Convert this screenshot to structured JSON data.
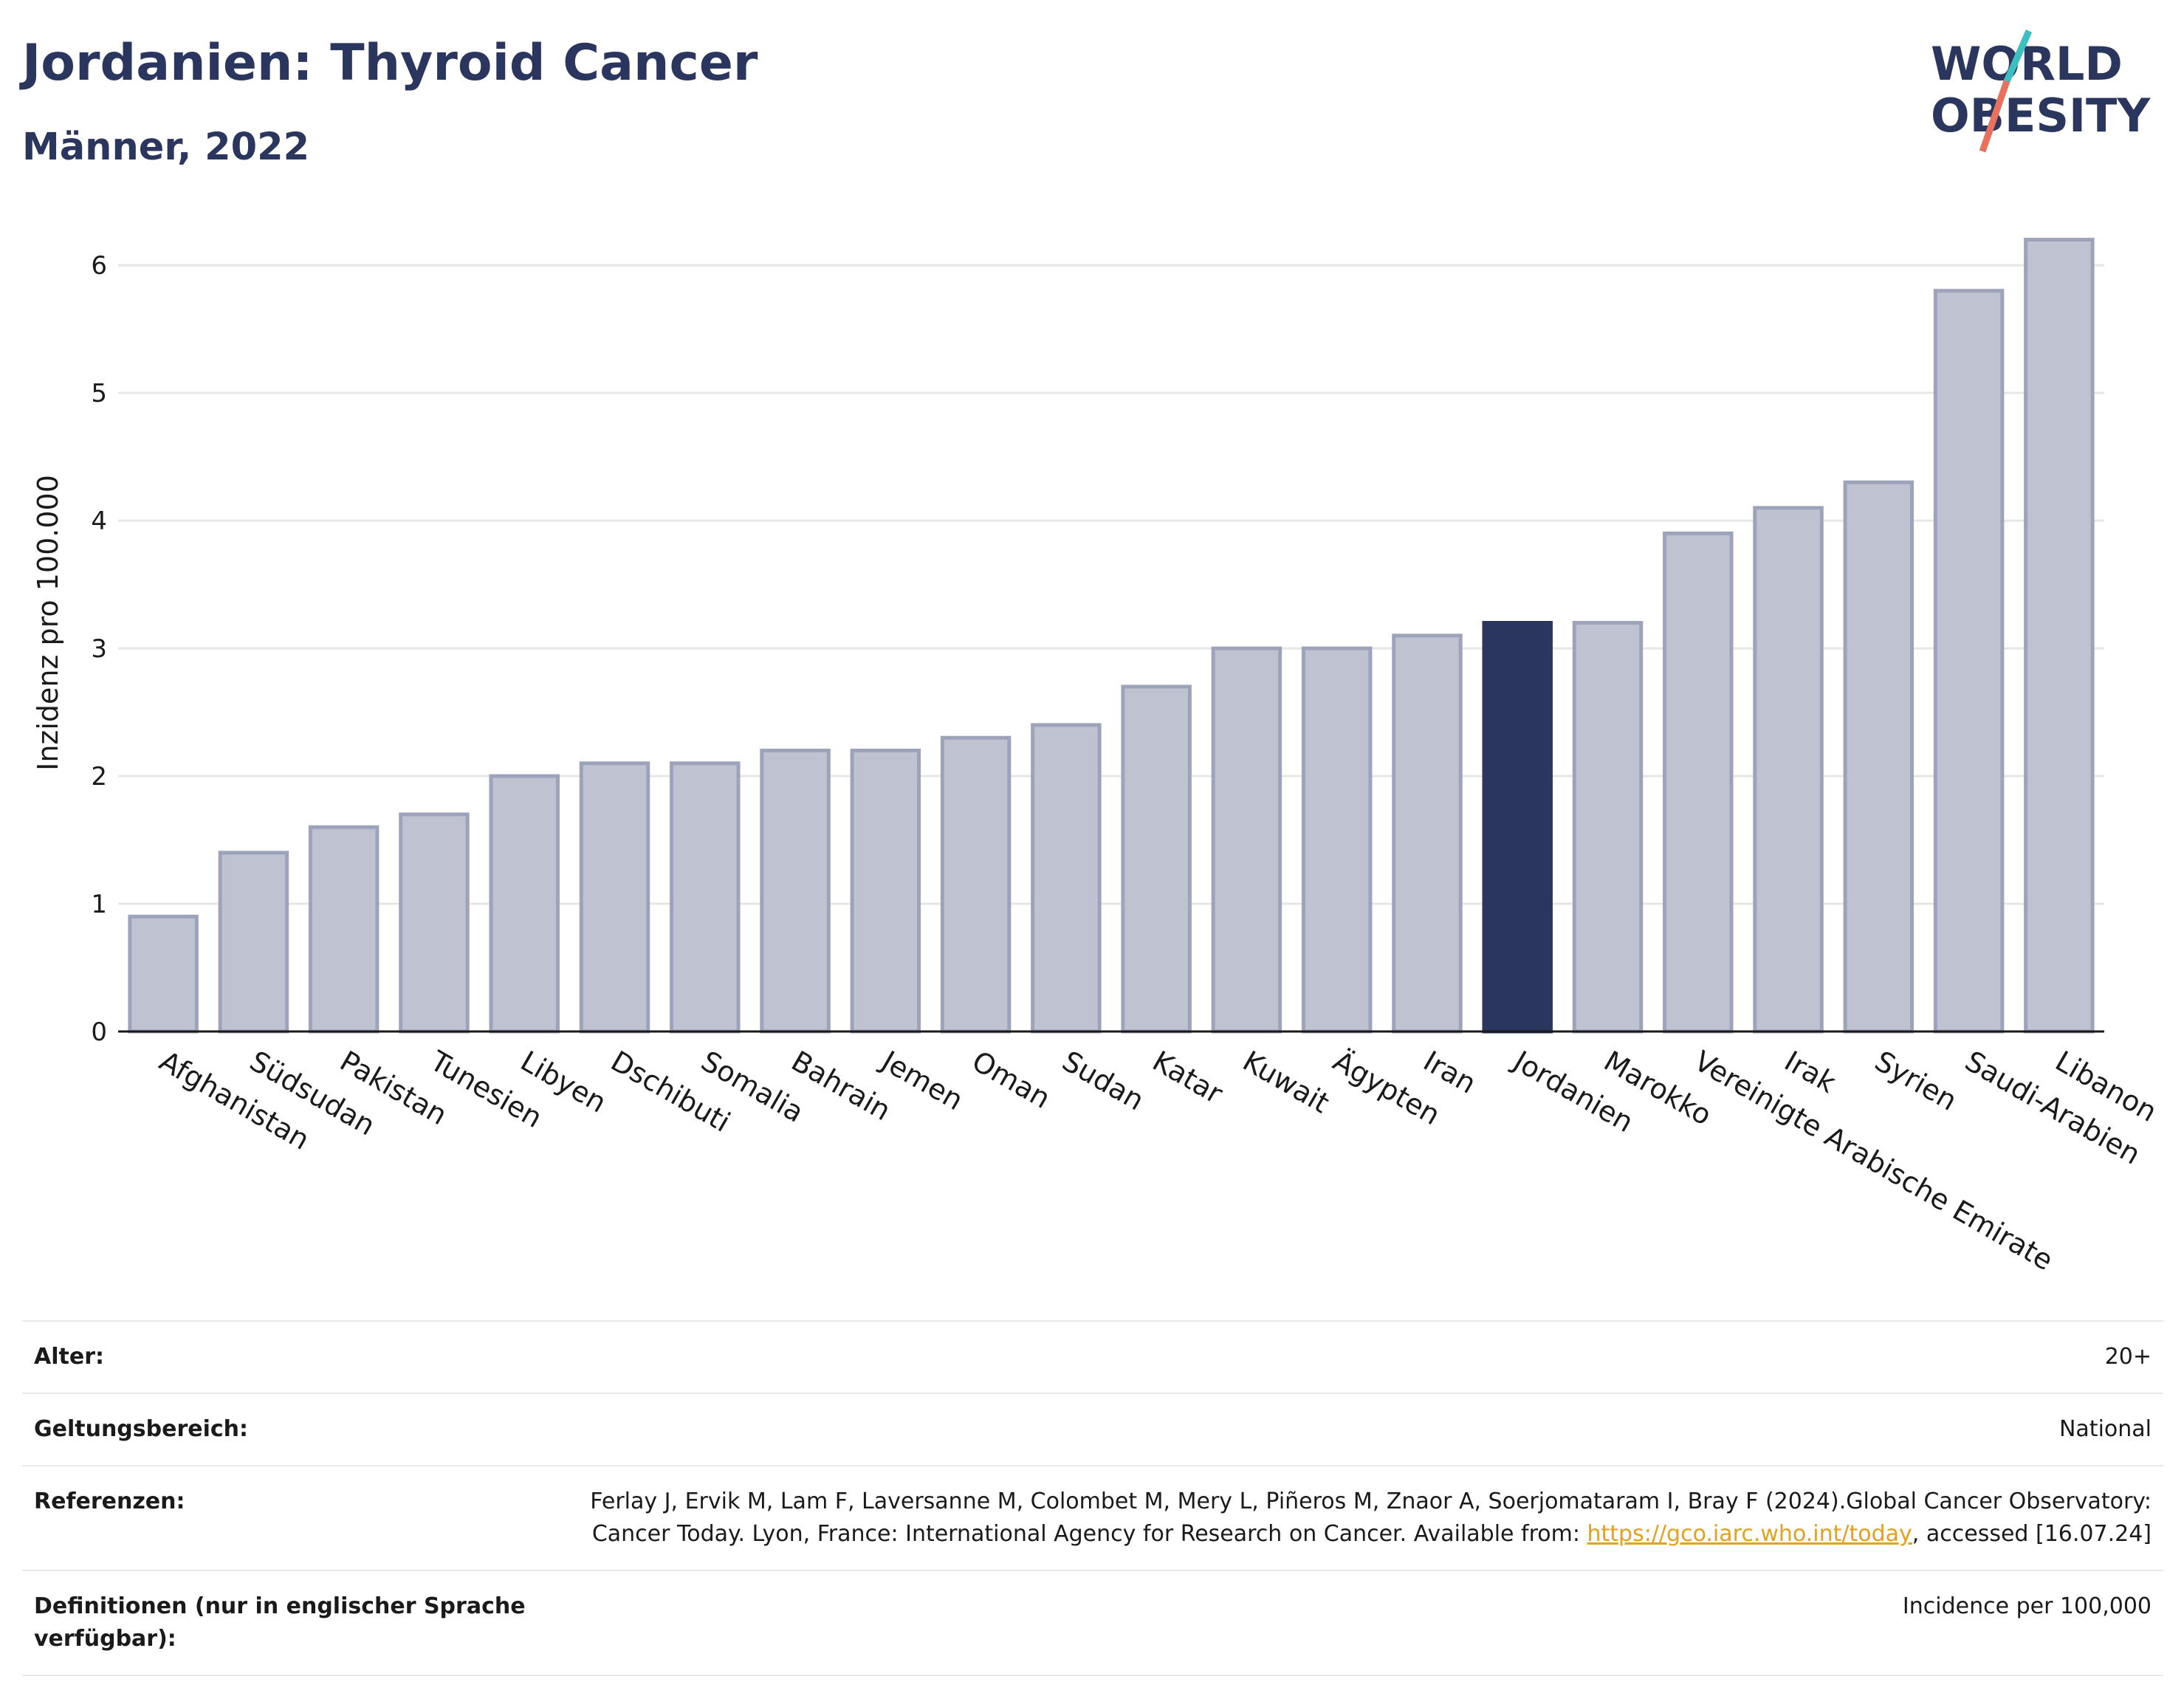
{
  "header": {
    "title": "Jordanien: Thyroid Cancer",
    "subtitle": "Männer, 2022"
  },
  "logo": {
    "line1": "WORLD",
    "line2": "OBESITY",
    "colors": {
      "text": "#2b365f",
      "slash_top": "#3cbfbf",
      "slash_bottom": "#e8705f"
    }
  },
  "chart_data": {
    "type": "bar",
    "ylabel": "Inzidenz pro 100.000",
    "ylim": [
      0,
      6.4
    ],
    "yticks": [
      0,
      1,
      2,
      3,
      4,
      5,
      6
    ],
    "grid": true,
    "highlight": "Jordanien",
    "colors": {
      "bar": "#bfc3d1",
      "bar_edge": "#9da3ba",
      "highlight": "#2b365f"
    },
    "categories": [
      "Afghanistan",
      "Südsudan",
      "Pakistan",
      "Tunesien",
      "Libyen",
      "Dschibuti",
      "Somalia",
      "Bahrain",
      "Jemen",
      "Oman",
      "Sudan",
      "Katar",
      "Kuwait",
      "Ägypten",
      "Iran",
      "Jordanien",
      "Marokko",
      "Vereinigte Arabische Emirate",
      "Irak",
      "Syrien",
      "Saudi-Arabien",
      "Libanon"
    ],
    "values": [
      0.9,
      1.4,
      1.6,
      1.7,
      2.0,
      2.1,
      2.1,
      2.2,
      2.2,
      2.3,
      2.4,
      2.7,
      3.0,
      3.0,
      3.1,
      3.2,
      3.2,
      3.9,
      4.1,
      4.3,
      5.8,
      6.2
    ]
  },
  "meta": {
    "age_label": "Alter:",
    "age_value": "20+",
    "scope_label": "Geltungsbereich:",
    "scope_value": "National",
    "ref_label": "Referenzen:",
    "ref_text_1": "Ferlay J, Ervik M, Lam F, Laversanne M, Colombet M, Mery L, Piñeros M, Znaor A, Soerjomataram I, Bray F (2024).Global Cancer Observatory: Cancer Today. Lyon, France: International Agency for Research on Cancer. Available from: ",
    "ref_link": "https://gco.iarc.who.int/today",
    "ref_text_2": ", accessed [16.07.24]",
    "def_label": "Definitionen (nur in englischer Sprache verfügbar):",
    "def_value": "Incidence per 100,000"
  }
}
